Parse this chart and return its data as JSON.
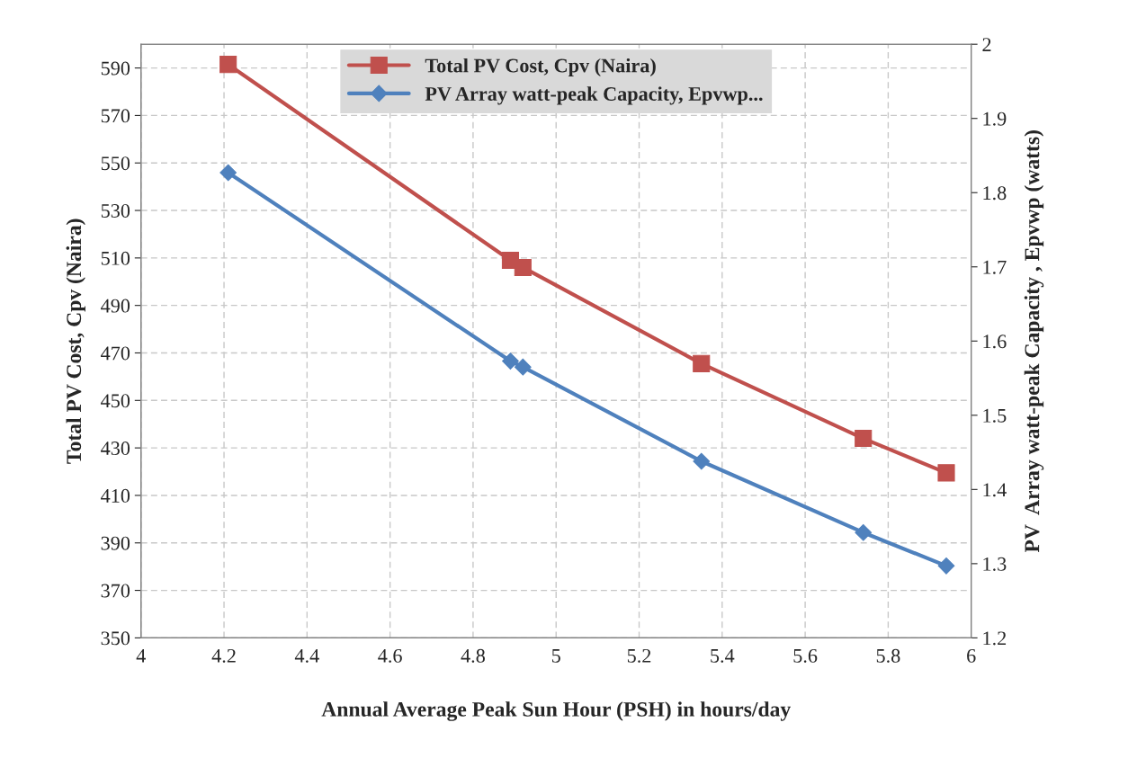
{
  "chart_data": {
    "type": "line",
    "xlabel": "Annual Average Peak Sun Hour (PSH) in hours/day",
    "ylabel": "Total PV Cost, Cpv (Naira)",
    "y2label": "PV  Array watt-peak Capacity , Epvwp (watts)",
    "series": [
      {
        "name": "Total PV Cost, Cpv (Naira)",
        "color": "#c0504d",
        "marker": "square",
        "x": [
          4.21,
          4.89,
          4.92,
          5.35,
          5.74,
          5.94
        ],
        "values": [
          591.5,
          509,
          506,
          465.5,
          434,
          419.5
        ]
      },
      {
        "name": "PV Array watt-peak Capacity, Epvwp...",
        "color": "#4f81bd",
        "marker": "diamond",
        "axis": "y2",
        "x": [
          4.21,
          4.89,
          4.92,
          5.35,
          5.74,
          5.94
        ],
        "values": [
          1.827,
          1.573,
          1.565,
          1.438,
          1.342,
          1.297
        ]
      }
    ],
    "xlim": [
      4,
      6
    ],
    "xticks": [
      4,
      4.2,
      4.4,
      4.6,
      4.8,
      5,
      5.2,
      5.4,
      5.6,
      5.8,
      6
    ],
    "ylim": [
      350,
      600
    ],
    "yticks": [
      350,
      370,
      390,
      410,
      430,
      450,
      470,
      490,
      510,
      530,
      550,
      570,
      590
    ],
    "y2lim": [
      1.2,
      2.0
    ],
    "y2ticks": [
      1.2,
      1.3,
      1.4,
      1.5,
      1.6,
      1.7,
      1.8,
      1.9,
      2
    ],
    "grid": true,
    "legend": "top",
    "line_style": "solid"
  }
}
